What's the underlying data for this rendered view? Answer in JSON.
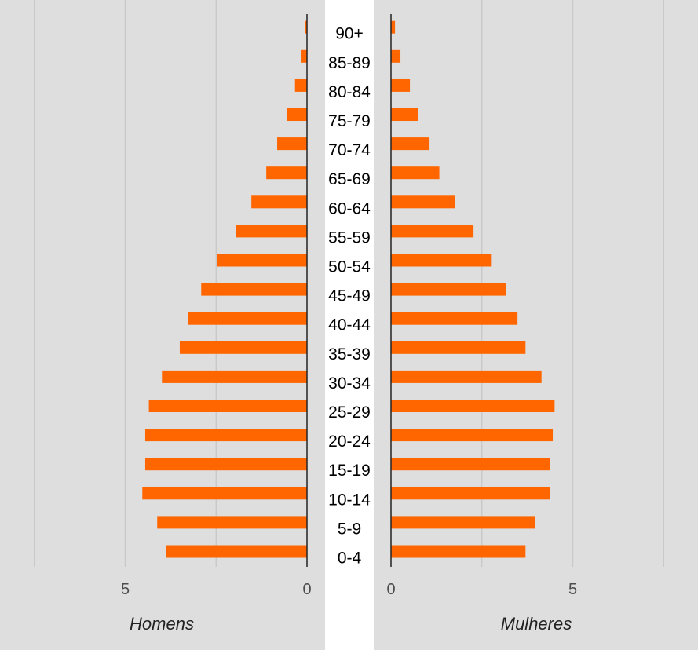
{
  "chart_data": {
    "type": "bar",
    "orientation": "horizontal",
    "layout": "population-pyramid",
    "categories": [
      "0-4",
      "5-9",
      "10-14",
      "15-19",
      "20-24",
      "25-29",
      "30-34",
      "35-39",
      "40-44",
      "45-49",
      "50-54",
      "55-59",
      "60-64",
      "65-69",
      "70-74",
      "75-79",
      "80-84",
      "85-89",
      "90+"
    ],
    "series": [
      {
        "name": "Homens",
        "side": "left",
        "color": "#ff6600",
        "values": [
          3.87,
          4.12,
          4.53,
          4.45,
          4.45,
          4.35,
          3.99,
          3.5,
          3.28,
          2.91,
          2.47,
          1.96,
          1.53,
          1.12,
          0.82,
          0.55,
          0.33,
          0.16,
          0.06
        ]
      },
      {
        "name": "Mulheres",
        "side": "right",
        "color": "#ff6600",
        "values": [
          3.7,
          3.96,
          4.37,
          4.37,
          4.45,
          4.5,
          4.14,
          3.7,
          3.48,
          3.17,
          2.75,
          2.27,
          1.77,
          1.33,
          1.06,
          0.75,
          0.52,
          0.26,
          0.11
        ]
      }
    ],
    "left_axis": {
      "ticks": [
        5,
        0
      ],
      "xlim": [
        0,
        8
      ]
    },
    "right_axis": {
      "ticks": [
        0,
        5
      ],
      "xlim": [
        0,
        8
      ]
    },
    "xlabel_left": "Homens",
    "xlabel_right": "Mulheres",
    "title": "",
    "grid": true,
    "panel_background": "#dedede",
    "gridline_color": "#c9c9c9"
  }
}
